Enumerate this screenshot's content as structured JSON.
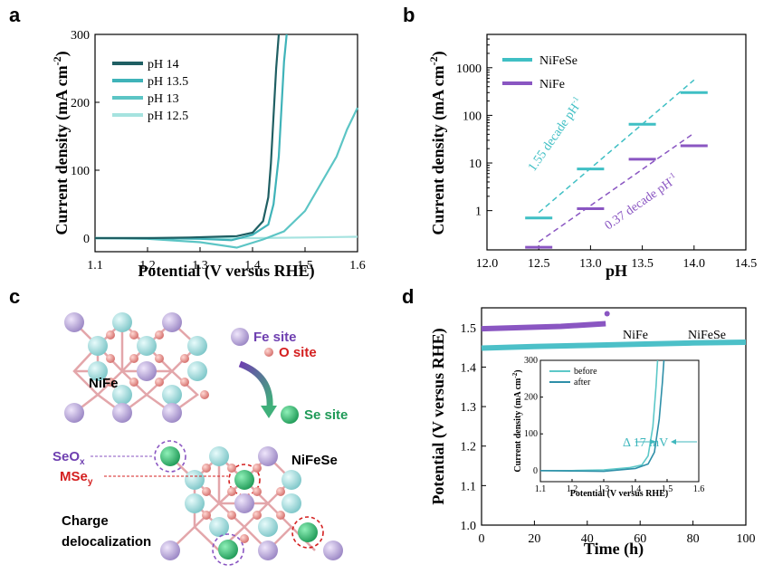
{
  "figure": {
    "panel_labels": [
      "a",
      "b",
      "c",
      "d"
    ]
  },
  "panel_a": {
    "chart_data": {
      "type": "line",
      "title": "",
      "xlabel": "Potential (V versus RHE)",
      "ylabel": "Current density (mA cm-2)",
      "xlim": [
        1.1,
        1.6
      ],
      "ylim": [
        -20,
        300
      ],
      "xticks": [
        "1.1",
        "1.2",
        "1.3",
        "1.4",
        "1.5",
        "1.6"
      ],
      "yticks": [
        "0",
        "100",
        "200",
        "300"
      ],
      "series": [
        {
          "name": "pH 14",
          "color": "#1f5f63",
          "x": [
            1.1,
            1.2,
            1.28,
            1.33,
            1.37,
            1.4,
            1.42,
            1.43,
            1.435,
            1.44,
            1.445,
            1.45
          ],
          "y": [
            0,
            0,
            1,
            2,
            3,
            8,
            25,
            60,
            110,
            180,
            250,
            300
          ]
        },
        {
          "name": "pH 13.5",
          "color": "#3fb3b9",
          "x": [
            1.1,
            1.2,
            1.3,
            1.36,
            1.4,
            1.43,
            1.44,
            1.45,
            1.455,
            1.46,
            1.465
          ],
          "y": [
            0,
            0,
            -1,
            -3,
            5,
            20,
            50,
            120,
            190,
            260,
            300
          ]
        },
        {
          "name": "pH 13",
          "color": "#5cc5c5",
          "x": [
            1.1,
            1.2,
            1.3,
            1.37,
            1.42,
            1.46,
            1.5,
            1.53,
            1.56,
            1.58,
            1.6
          ],
          "y": [
            0,
            -1,
            -6,
            -14,
            -2,
            10,
            40,
            80,
            120,
            160,
            192
          ]
        },
        {
          "name": "pH 12.5",
          "color": "#a6e3e0",
          "x": [
            1.1,
            1.2,
            1.3,
            1.4,
            1.5,
            1.6
          ],
          "y": [
            0,
            0,
            0,
            0,
            1,
            2
          ]
        }
      ]
    }
  },
  "panel_b": {
    "chart_data": {
      "type": "scatter",
      "title": "",
      "xlabel": "pH",
      "ylabel": "Current density (mA cm-2)",
      "xlim": [
        12.0,
        14.5
      ],
      "ylim": [
        0.15,
        5000
      ],
      "xticks": [
        "12.0",
        "12.5",
        "13.0",
        "13.5",
        "14.0",
        "14.5"
      ],
      "yticks": [
        "1",
        "10",
        "100",
        "1000"
      ],
      "series": [
        {
          "name": "NiFeSe",
          "color": "#3fbfc4",
          "x": [
            12.5,
            13.0,
            13.5,
            14.0
          ],
          "y": [
            0.7,
            7.5,
            65,
            300
          ]
        },
        {
          "name": "NiFe",
          "color": "#8a56c2",
          "x": [
            12.5,
            13.0,
            13.5,
            14.0
          ],
          "y": [
            0.17,
            1.1,
            12,
            23
          ]
        }
      ],
      "annotations": [
        "1.55 decade pH",
        "0.37 decade pH"
      ],
      "annotation_sup": "-1"
    }
  },
  "panel_c": {
    "legend": {
      "fe": "Fe site",
      "o": "O site",
      "se": "Se site"
    },
    "labels": {
      "nife": "NiFe",
      "nifese": "NiFeSe",
      "seox": "SeO",
      "seox_sub": "x",
      "mse": "MSe",
      "mse_sub": "y",
      "charge_line1": "Charge",
      "charge_line2": "delocalization"
    }
  },
  "panel_d": {
    "chart_data": {
      "type": "line",
      "title": "",
      "xlabel": "Time (h)",
      "ylabel": "Potential (V versus RHE)",
      "xlim": [
        0,
        100
      ],
      "ylim": [
        1.0,
        1.55
      ],
      "xticks": [
        "0",
        "20",
        "40",
        "60",
        "80",
        "100"
      ],
      "yticks": [
        "1.0",
        "1.1",
        "1.2",
        "1.3",
        "1.4",
        "1.5"
      ],
      "series": [
        {
          "name": "NiFe",
          "color": "#8a56c2",
          "x": [
            0,
            10,
            20,
            30,
            40,
            47
          ],
          "y": [
            1.497,
            1.499,
            1.501,
            1.503,
            1.507,
            1.51
          ]
        },
        {
          "name": "NiFeSe",
          "color": "#4cc0c8",
          "x": [
            0,
            20,
            40,
            60,
            80,
            100
          ],
          "y": [
            1.448,
            1.452,
            1.455,
            1.458,
            1.461,
            1.463
          ]
        }
      ],
      "end_point": {
        "x": 47.5,
        "y": 1.535
      }
    },
    "inset": {
      "chart_data": {
        "type": "line",
        "xlabel": "Potential (V versus RHE)",
        "ylabel": "Current density (mA cm-2)",
        "xlim": [
          1.1,
          1.6
        ],
        "ylim": [
          -30,
          300
        ],
        "xticks": [
          "1.1",
          "1.2",
          "1.3",
          "1.4",
          "1.5",
          "1.6"
        ],
        "yticks": [
          "0",
          "100",
          "200",
          "300"
        ],
        "series": [
          {
            "name": "before",
            "color": "#5cc8c8",
            "x": [
              1.1,
              1.2,
              1.3,
              1.38,
              1.42,
              1.44,
              1.455,
              1.465,
              1.47
            ],
            "y": [
              0,
              0,
              2,
              8,
              15,
              40,
              120,
              230,
              300
            ]
          },
          {
            "name": "after",
            "color": "#2e8fa8",
            "x": [
              1.1,
              1.2,
              1.3,
              1.4,
              1.44,
              1.46,
              1.475,
              1.485,
              1.49
            ],
            "y": [
              0,
              -1,
              -2,
              6,
              18,
              50,
              140,
              240,
              300
            ]
          }
        ],
        "annotation": "Δ 17 mV"
      }
    }
  }
}
